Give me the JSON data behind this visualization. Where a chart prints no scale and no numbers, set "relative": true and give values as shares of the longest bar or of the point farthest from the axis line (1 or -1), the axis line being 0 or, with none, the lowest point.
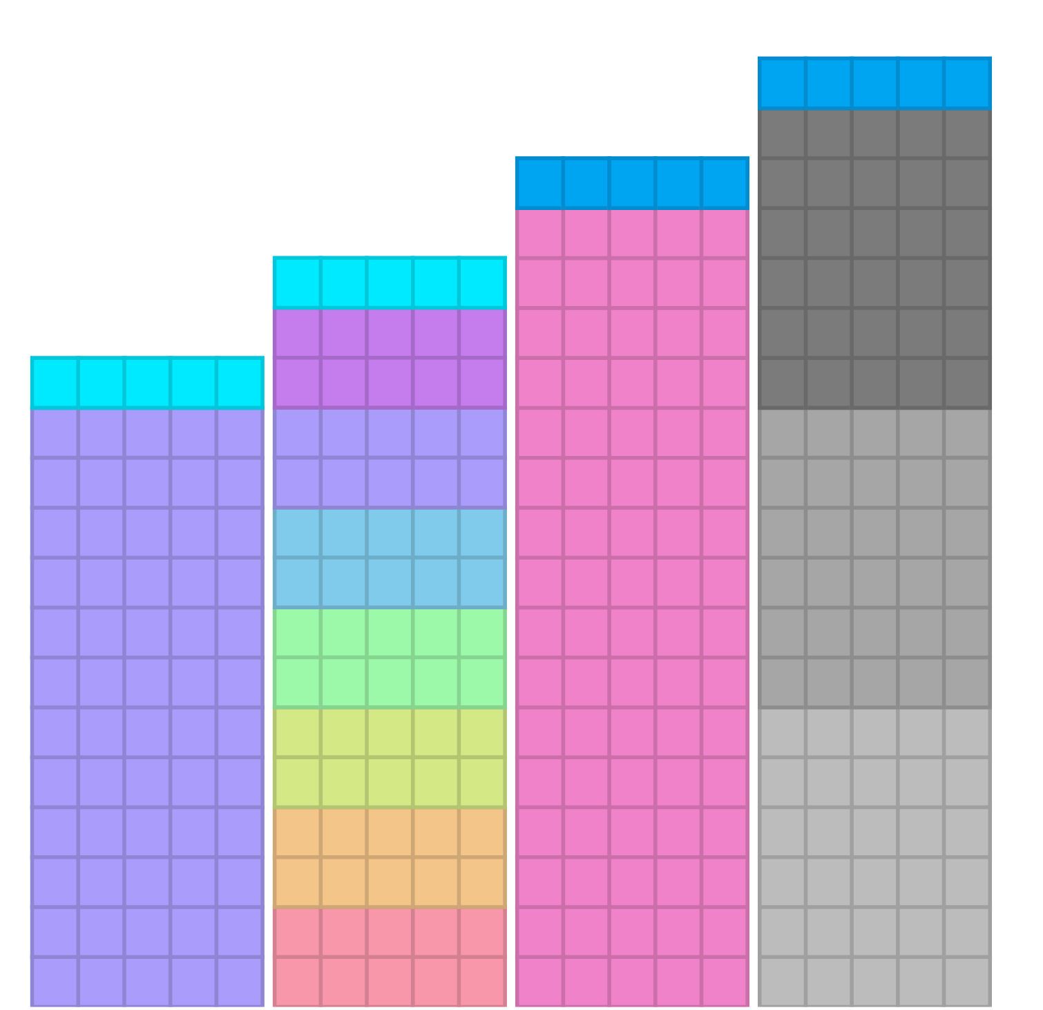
{
  "chart_data": {
    "type": "bar",
    "stacked": true,
    "relative": true,
    "categories": [
      null,
      null,
      null,
      null
    ],
    "series": [
      {
        "colors": [
          "#a99cfa",
          "#f896aa",
          "#ef82c8",
          "#bcbcbc"
        ],
        "values": [
          0.6316,
          0.1053,
          0.8421,
          0.3158
        ]
      },
      {
        "colors": [
          null,
          "#f3c589",
          null,
          "#a6a6a6"
        ],
        "values": [
          null,
          0.1053,
          null,
          0.3158
        ]
      },
      {
        "colors": [
          null,
          "#d4e885",
          null,
          "#7b7b7b"
        ],
        "values": [
          null,
          0.1053,
          null,
          0.3158
        ]
      },
      {
        "colors": [
          null,
          "#9cf9a9",
          null,
          null
        ],
        "values": [
          null,
          0.1053,
          null,
          null
        ]
      },
      {
        "colors": [
          null,
          "#80cbeb",
          null,
          null
        ],
        "values": [
          null,
          0.1053,
          null,
          null
        ]
      },
      {
        "colors": [
          null,
          "#a99cfa",
          null,
          null
        ],
        "values": [
          null,
          0.1053,
          null,
          null
        ]
      },
      {
        "colors": [
          null,
          "#c57ced",
          null,
          null
        ],
        "values": [
          null,
          0.1053,
          null,
          null
        ]
      },
      {
        "colors": [
          "#00eaff",
          "#00eaff",
          "#00a5f2",
          "#00a5f2"
        ],
        "values": [
          0.0526,
          0.0526,
          0.0526,
          0.0526
        ]
      }
    ]
  }
}
